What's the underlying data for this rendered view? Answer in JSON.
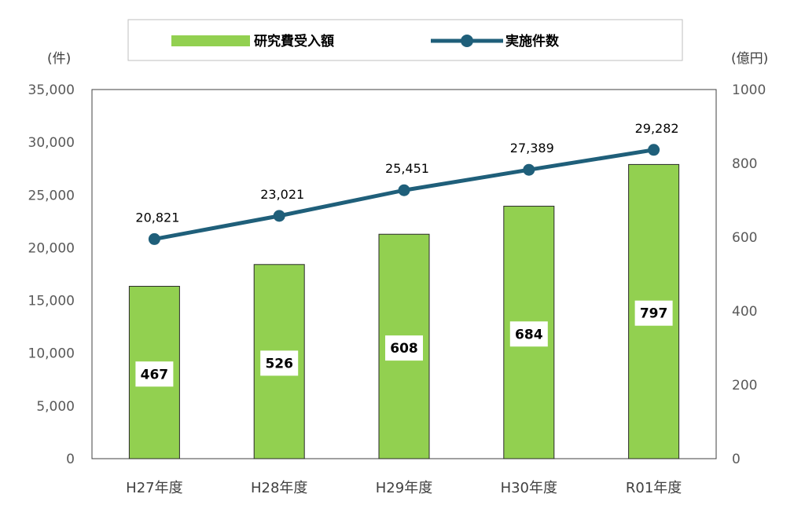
{
  "colors": {
    "bar": "#92d050",
    "bar_edge": "#2a2a2a",
    "line": "#1f5f7a",
    "axis": "#404040",
    "legend_border": "#bfbfbf"
  },
  "chart_data": {
    "type": "bar+line",
    "categories": [
      "H27年度",
      "H28年度",
      "H29年度",
      "H30年度",
      "R01年度"
    ],
    "series": [
      {
        "name": "研究費受入額",
        "type": "bar",
        "axis": "right",
        "values": [
          467,
          526,
          608,
          684,
          797
        ]
      },
      {
        "name": "実施件数",
        "type": "line",
        "axis": "left",
        "values": [
          20821,
          23021,
          25451,
          27389,
          29282
        ]
      }
    ],
    "data_labels": {
      "bar": [
        "467",
        "526",
        "608",
        "684",
        "797"
      ],
      "line": [
        "20,821",
        "23,021",
        "25,451",
        "27,389",
        "29,282"
      ]
    },
    "left_axis": {
      "unit": "(件)",
      "ylim": [
        0,
        35000
      ],
      "ticks": [
        0,
        5000,
        10000,
        15000,
        20000,
        25000,
        30000,
        35000
      ],
      "tick_labels": [
        "0",
        "5,000",
        "10,000",
        "15,000",
        "20,000",
        "25,000",
        "30,000",
        "35,000"
      ]
    },
    "right_axis": {
      "unit": "(億円)",
      "ylim": [
        0,
        1000
      ],
      "ticks": [
        0,
        200,
        400,
        600,
        800,
        1000
      ],
      "tick_labels": [
        "0",
        "200",
        "400",
        "600",
        "800",
        "1000"
      ]
    },
    "legend": {
      "position": "top",
      "entries": [
        "研究費受入額",
        "実施件数"
      ]
    },
    "grid": false
  }
}
